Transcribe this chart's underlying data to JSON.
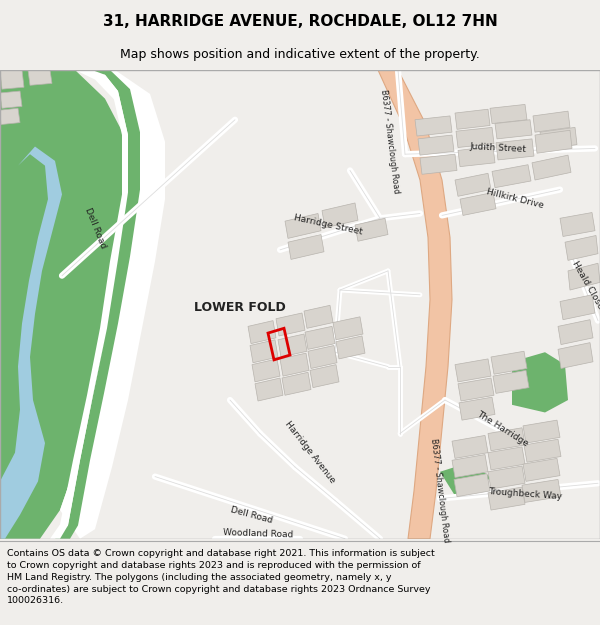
{
  "title": "31, HARRIDGE AVENUE, ROCHDALE, OL12 7HN",
  "subtitle": "Map shows position and indicative extent of the property.",
  "footer": "Contains OS data © Crown copyright and database right 2021. This information is subject\nto Crown copyright and database rights 2023 and is reproduced with the permission of\nHM Land Registry. The polygons (including the associated geometry, namely x, y\nco-ordinates) are subject to Crown copyright and database rights 2023 Ordnance Survey\n100026316.",
  "bg_color": "#f0eeeb",
  "map_bg": "#ffffff",
  "green_color": "#6db36d",
  "road_salmon": "#f2c4a5",
  "road_salmon_edge": "#dea882",
  "building_fill": "#d8d4ce",
  "building_edge": "#b8b4ae",
  "highlight_red": "#dd0000",
  "water_blue": "#a0cce0",
  "label_color": "#222222",
  "border_color": "#aaaaaa",
  "footer_bg": "#ffffff"
}
